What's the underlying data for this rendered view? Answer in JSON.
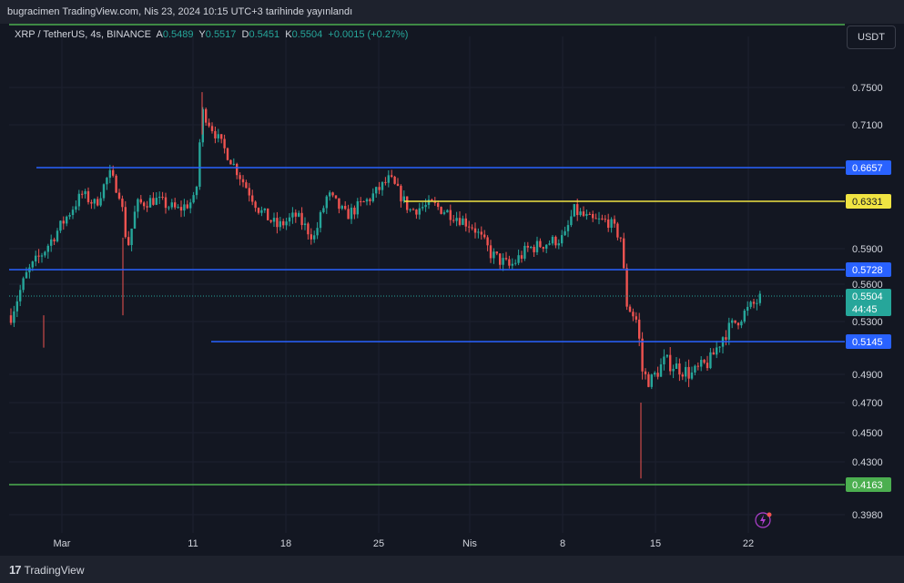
{
  "header": {
    "publish_text": "bugracimen TradingView.com, Nis 23, 2024 10:15 UTC+3 tarihinde yayınlandı"
  },
  "legend": {
    "symbol": "XRP / TetherUS, 4s, BINANCE",
    "open_label": "A",
    "open_value": "0.5489",
    "high_label": "Y",
    "high_value": "0.5517",
    "low_label": "D",
    "low_value": "0.5451",
    "close_label": "K",
    "close_value": "0.5504",
    "change": "+0.0015 (+0.27%)"
  },
  "currency_button": "USDT",
  "chart_data": {
    "type": "candlestick",
    "price_axis_ticks": [
      "0.7500",
      "0.7100",
      "0.5900",
      "0.5600",
      "0.5300",
      "0.4900",
      "0.4700",
      "0.4500",
      "0.4300",
      "0.3980"
    ],
    "time_axis_ticks": [
      "Mar",
      "11",
      "18",
      "25",
      "Nis",
      "8",
      "15",
      "22"
    ],
    "current_price": "0.5504",
    "countdown": "44:45",
    "levels": [
      {
        "value": "0.6657",
        "color": "#2962ff"
      },
      {
        "value": "0.6331",
        "color": "#f0e442"
      },
      {
        "value": "0.5728",
        "color": "#2962ff"
      },
      {
        "value": "0.5145",
        "color": "#2962ff"
      },
      {
        "value": "0.4163",
        "color": "#4caf50"
      }
    ],
    "colors": {
      "up": "#26a69a",
      "down": "#ef5350",
      "background": "#131722",
      "grid": "#1c2030"
    }
  },
  "footer": {
    "logo_text": "TradingView"
  }
}
